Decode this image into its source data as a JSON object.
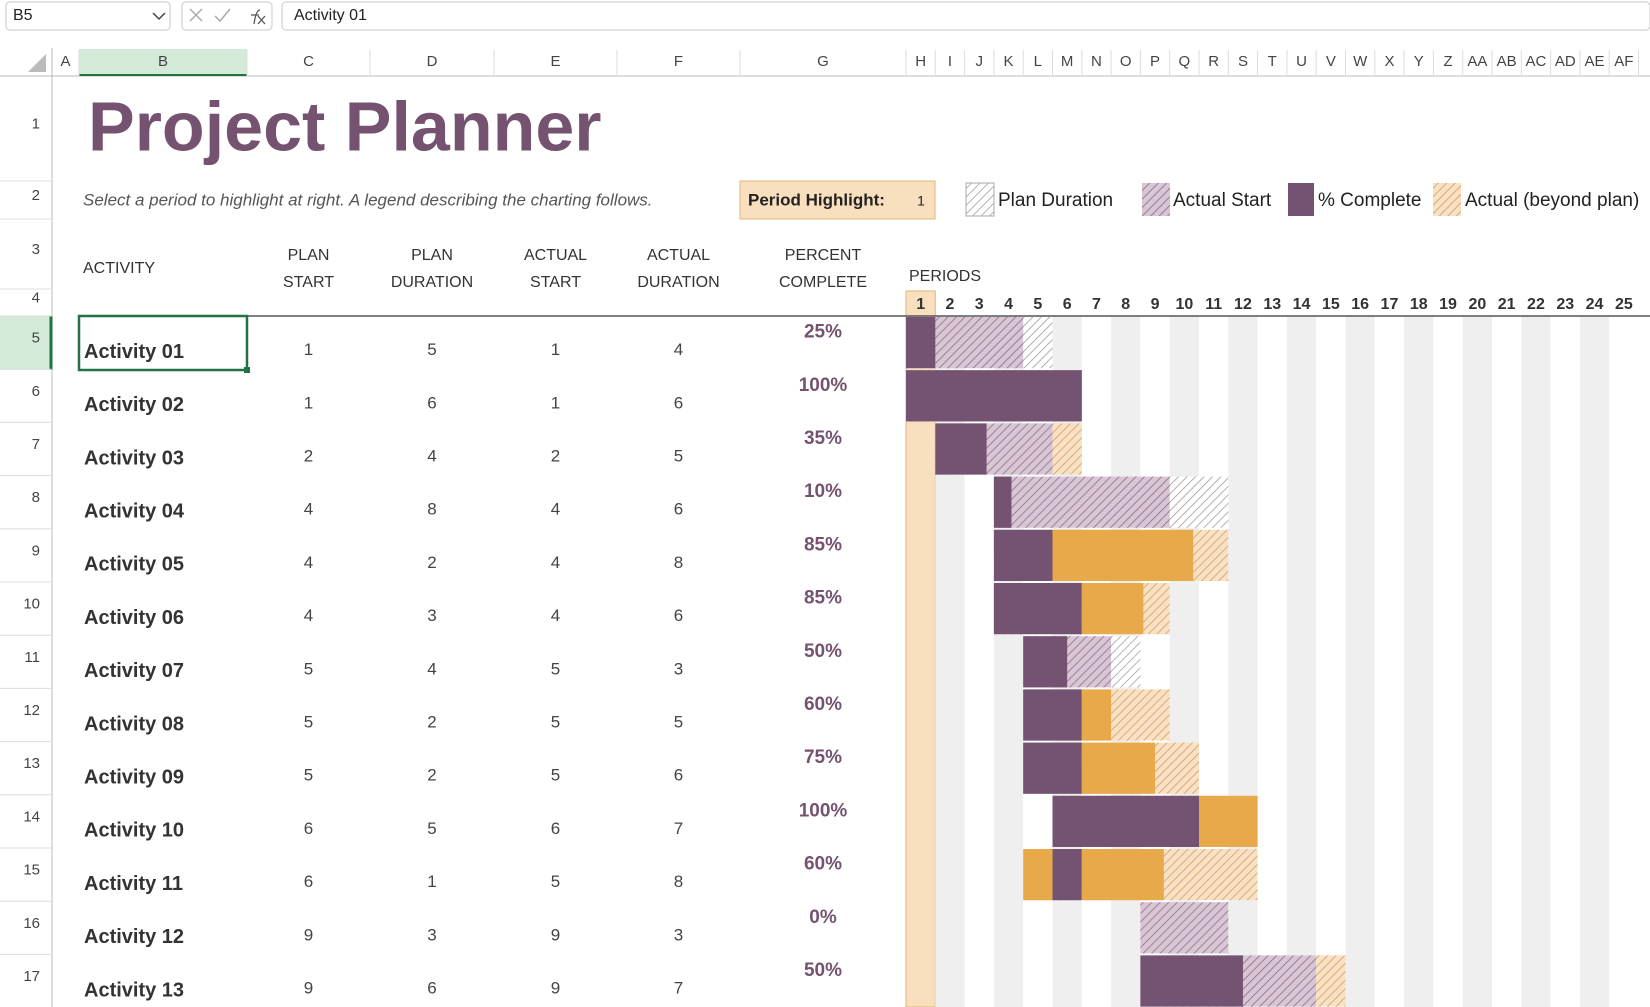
{
  "formula_bar": {
    "name_box": "B5",
    "formula": "Activity 01"
  },
  "column_headers": [
    "A",
    "B",
    "C",
    "D",
    "E",
    "F",
    "G",
    "H",
    "I",
    "J",
    "K",
    "L",
    "M",
    "N",
    "O",
    "P",
    "Q",
    "R",
    "S",
    "T",
    "U",
    "V",
    "W",
    "X",
    "Y",
    "Z",
    "AA",
    "AB",
    "AC",
    "AD",
    "AE",
    "AF"
  ],
  "row_headers": [
    1,
    2,
    3,
    4,
    5,
    6,
    7,
    8,
    9,
    10,
    11,
    12,
    13,
    14,
    15,
    16,
    17
  ],
  "title": "Project Planner",
  "subtitle": "Select a period to highlight at right.  A legend describing the charting follows.",
  "period_highlight": {
    "label": "Period Highlight:",
    "value": 1
  },
  "legend": [
    "Plan Duration",
    "Actual Start",
    "% Complete",
    "Actual (beyond plan)"
  ],
  "table": {
    "headers": [
      [
        "ACTIVITY"
      ],
      [
        "PLAN",
        "START"
      ],
      [
        "PLAN",
        "DURATION"
      ],
      [
        "ACTUAL",
        "START"
      ],
      [
        "ACTUAL",
        "DURATION"
      ],
      [
        "PERCENT",
        "COMPLETE"
      ]
    ],
    "periods_label": "PERIODS",
    "periods": [
      1,
      2,
      3,
      4,
      5,
      6,
      7,
      8,
      9,
      10,
      11,
      12,
      13,
      14,
      15,
      16,
      17,
      18,
      19,
      20,
      21,
      22,
      23,
      24,
      25
    ],
    "rows": [
      {
        "activity": "Activity 01",
        "plan_start": 1,
        "plan_duration": 5,
        "actual_start": 1,
        "actual_duration": 4,
        "percent_complete": 25,
        "percent_label": "25%"
      },
      {
        "activity": "Activity 02",
        "plan_start": 1,
        "plan_duration": 6,
        "actual_start": 1,
        "actual_duration": 6,
        "percent_complete": 100,
        "percent_label": "100%"
      },
      {
        "activity": "Activity 03",
        "plan_start": 2,
        "plan_duration": 4,
        "actual_start": 2,
        "actual_duration": 5,
        "percent_complete": 35,
        "percent_label": "35%"
      },
      {
        "activity": "Activity 04",
        "plan_start": 4,
        "plan_duration": 8,
        "actual_start": 4,
        "actual_duration": 6,
        "percent_complete": 10,
        "percent_label": "10%"
      },
      {
        "activity": "Activity 05",
        "plan_start": 4,
        "plan_duration": 2,
        "actual_start": 4,
        "actual_duration": 8,
        "percent_complete": 85,
        "percent_label": "85%"
      },
      {
        "activity": "Activity 06",
        "plan_start": 4,
        "plan_duration": 3,
        "actual_start": 4,
        "actual_duration": 6,
        "percent_complete": 85,
        "percent_label": "85%"
      },
      {
        "activity": "Activity 07",
        "plan_start": 5,
        "plan_duration": 4,
        "actual_start": 5,
        "actual_duration": 3,
        "percent_complete": 50,
        "percent_label": "50%"
      },
      {
        "activity": "Activity 08",
        "plan_start": 5,
        "plan_duration": 2,
        "actual_start": 5,
        "actual_duration": 5,
        "percent_complete": 60,
        "percent_label": "60%"
      },
      {
        "activity": "Activity 09",
        "plan_start": 5,
        "plan_duration": 2,
        "actual_start": 5,
        "actual_duration": 6,
        "percent_complete": 75,
        "percent_label": "75%"
      },
      {
        "activity": "Activity 10",
        "plan_start": 6,
        "plan_duration": 5,
        "actual_start": 6,
        "actual_duration": 7,
        "percent_complete": 100,
        "percent_label": "100%"
      },
      {
        "activity": "Activity 11",
        "plan_start": 6,
        "plan_duration": 1,
        "actual_start": 5,
        "actual_duration": 8,
        "percent_complete": 60,
        "percent_label": "60%"
      },
      {
        "activity": "Activity 12",
        "plan_start": 9,
        "plan_duration": 3,
        "actual_start": 9,
        "actual_duration": 3,
        "percent_complete": 0,
        "percent_label": "0%"
      },
      {
        "activity": "Activity 13",
        "plan_start": 9,
        "plan_duration": 6,
        "actual_start": 9,
        "actual_duration": 7,
        "percent_complete": 50,
        "percent_label": "50%"
      }
    ]
  }
}
